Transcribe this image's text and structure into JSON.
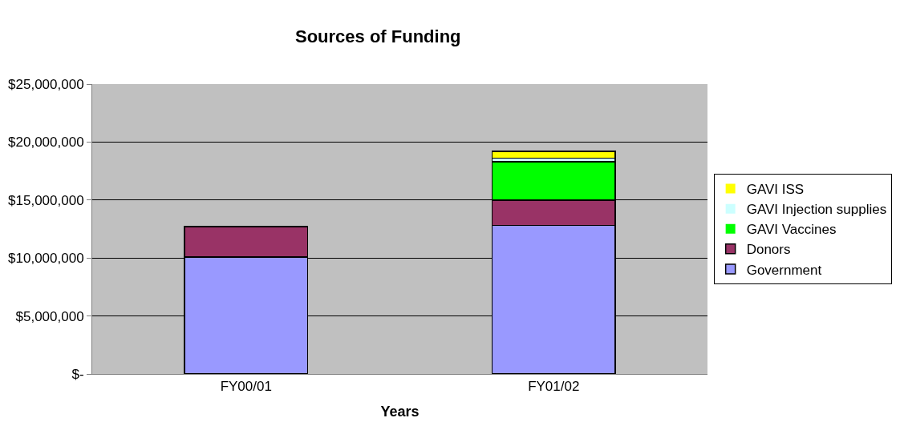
{
  "chart_data": {
    "type": "bar",
    "title": "Sources of Funding",
    "xlabel": "Years",
    "categories": [
      "FY00/01",
      "FY01/02"
    ],
    "stacked": true,
    "series": [
      {
        "name": "Government",
        "color": "#9999ff",
        "values": [
          10100000,
          12800000
        ]
      },
      {
        "name": "Donors",
        "color": "#993366",
        "values": [
          2600000,
          2200000
        ]
      },
      {
        "name": "GAVI Vaccines",
        "color": "#00ff00",
        "values": [
          0,
          3300000
        ]
      },
      {
        "name": "GAVI Injection supplies",
        "color": "#ccffff",
        "values": [
          0,
          300000
        ]
      },
      {
        "name": "GAVI ISS",
        "color": "#ffff00",
        "values": [
          0,
          600000
        ]
      }
    ],
    "ylim": [
      0,
      25000000
    ],
    "yticks": [
      {
        "value": 0,
        "label": "$-"
      },
      {
        "value": 5000000,
        "label": "$5,000,000"
      },
      {
        "value": 10000000,
        "label": "$10,000,000"
      },
      {
        "value": 15000000,
        "label": "$15,000,000"
      },
      {
        "value": 20000000,
        "label": "$20,000,000"
      },
      {
        "value": 25000000,
        "label": "$25,000,000"
      }
    ],
    "grid": "y",
    "legend": "right"
  }
}
